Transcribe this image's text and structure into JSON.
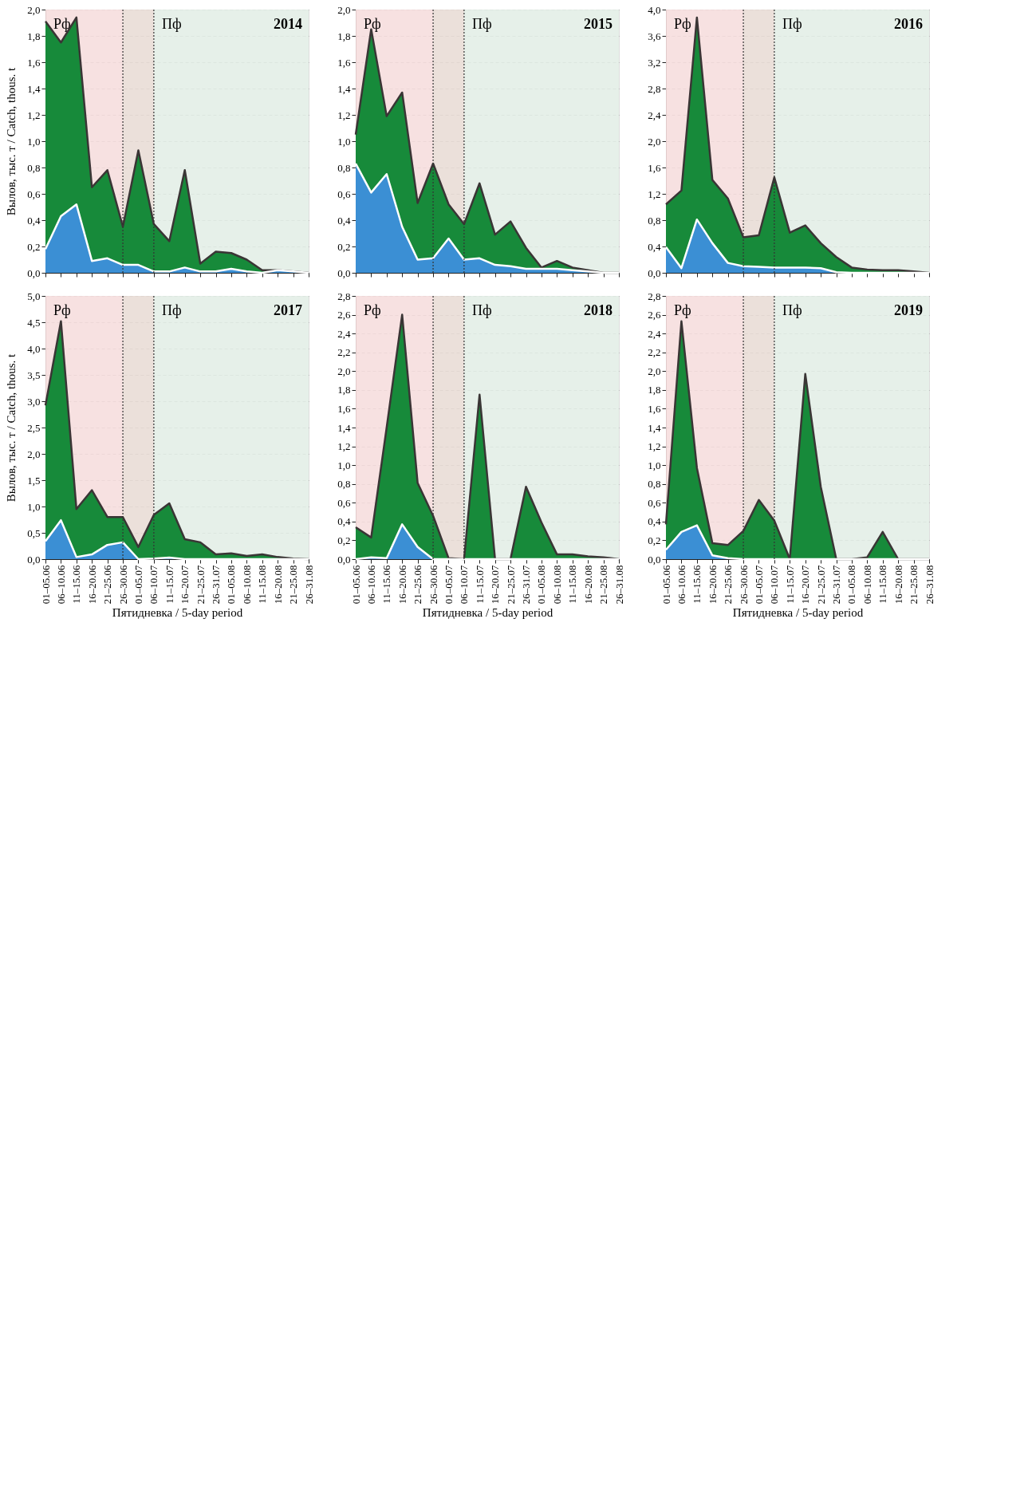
{
  "chart_data": [
    {
      "type": "area",
      "title": "2014",
      "ylabel": "Вылов, тыс. т / Catch, thous. t",
      "tick_labels": "y",
      "grid": "y",
      "categories": [
        "01–05.06",
        "06–10.06",
        "11–15.06",
        "16–20.06",
        "21–25.06",
        "26–30.06",
        "01–05.07",
        "06–10.07",
        "11–15.07",
        "16–20.07",
        "21–25.07",
        "26–31.07",
        "01–05.08",
        "06–10.08",
        "11–15.08",
        "16–20.08",
        "21–25.08",
        "26–31.08"
      ],
      "series": [
        {
          "color": "#178a3a",
          "values": [
            1.91,
            1.75,
            1.94,
            0.65,
            0.78,
            0.35,
            0.93,
            0.37,
            0.24,
            0.78,
            0.07,
            0.16,
            0.15,
            0.1,
            0.02,
            0.02,
            0.01,
            0
          ]
        },
        {
          "color": "#3b8fd4",
          "values": [
            0.18,
            0.43,
            0.52,
            0.09,
            0.11,
            0.06,
            0.06,
            0.01,
            0.01,
            0.04,
            0.01,
            0.01,
            0.03,
            0.01,
            0,
            0.02,
            0.01,
            0
          ]
        }
      ],
      "ylim": [
        0,
        2.0
      ],
      "yticks": [
        {
          "value": 0,
          "label": "0,0"
        },
        {
          "value": 0.2,
          "label": "0,2"
        },
        {
          "value": 0.4,
          "label": "0,4"
        },
        {
          "value": 0.6,
          "label": "0,6"
        },
        {
          "value": 0.8,
          "label": "0,8"
        },
        {
          "value": 1.0,
          "label": "1,0"
        },
        {
          "value": 1.2,
          "label": "1,2"
        },
        {
          "value": 1.4,
          "label": "1,4"
        },
        {
          "value": 1.6,
          "label": "1,6"
        },
        {
          "value": 1.8,
          "label": "1,8"
        },
        {
          "value": 2.0,
          "label": "2,0"
        }
      ],
      "bands": [
        {
          "axis": "x",
          "from": "01–05.06",
          "to": "26–30.06",
          "label": "Рф",
          "color": "#f6dede"
        },
        {
          "axis": "x",
          "from": "26–30.06",
          "to": "06–10.07",
          "label": null,
          "color": "#e9ddd6"
        },
        {
          "axis": "x",
          "from": "06–10.07",
          "to": "26–31.08",
          "label": "Пф",
          "color": "#e3eee7"
        }
      ],
      "ref_lines": [
        {
          "axis": "x",
          "value": "26–30.06",
          "label": null,
          "line_style": "dotted"
        },
        {
          "axis": "x",
          "value": "06–10.07",
          "label": null,
          "line_style": "dotted"
        }
      ]
    },
    {
      "type": "area",
      "title": "2015",
      "tick_labels": "y",
      "grid": "y",
      "categories": [
        "01–05.06",
        "06–10.06",
        "11–15.06",
        "16–20.06",
        "21–25.06",
        "26–30.06",
        "01–05.07",
        "06–10.07",
        "11–15.07",
        "16–20.07",
        "21–25.07",
        "26–31.07",
        "01–05.08",
        "06–10.08",
        "11–15.08",
        "16–20.08",
        "21–25.08",
        "26–31.08"
      ],
      "series": [
        {
          "color": "#178a3a",
          "values": [
            1.05,
            1.85,
            1.19,
            1.37,
            0.53,
            0.83,
            0.52,
            0.37,
            0.68,
            0.29,
            0.39,
            0.19,
            0.04,
            0.09,
            0.04,
            0.02,
            0,
            0
          ]
        },
        {
          "color": "#3b8fd4",
          "values": [
            0.83,
            0.61,
            0.75,
            0.35,
            0.1,
            0.11,
            0.26,
            0.1,
            0.11,
            0.06,
            0.05,
            0.03,
            0.03,
            0.03,
            0.02,
            0.01,
            0,
            0
          ]
        }
      ],
      "ylim": [
        0,
        2.0
      ],
      "yticks": [
        {
          "value": 0,
          "label": "0,0"
        },
        {
          "value": 0.2,
          "label": "0,2"
        },
        {
          "value": 0.4,
          "label": "0,4"
        },
        {
          "value": 0.6,
          "label": "0,6"
        },
        {
          "value": 0.8,
          "label": "0,8"
        },
        {
          "value": 1.0,
          "label": "1,0"
        },
        {
          "value": 1.2,
          "label": "1,2"
        },
        {
          "value": 1.4,
          "label": "1,4"
        },
        {
          "value": 1.6,
          "label": "1,6"
        },
        {
          "value": 1.8,
          "label": "1,8"
        },
        {
          "value": 2.0,
          "label": "2,0"
        }
      ],
      "bands": [
        {
          "axis": "x",
          "from": "01–05.06",
          "to": "26–30.06",
          "label": "Рф",
          "color": "#f6dede"
        },
        {
          "axis": "x",
          "from": "26–30.06",
          "to": "06–10.07",
          "label": null,
          "color": "#e9ddd6"
        },
        {
          "axis": "x",
          "from": "06–10.07",
          "to": "26–31.08",
          "label": "Пф",
          "color": "#e3eee7"
        }
      ],
      "ref_lines": [
        {
          "axis": "x",
          "value": "26–30.06",
          "label": null,
          "line_style": "dotted"
        },
        {
          "axis": "x",
          "value": "06–10.07",
          "label": null,
          "line_style": "dotted"
        }
      ]
    },
    {
      "type": "area",
      "title": "2016",
      "tick_labels": "y",
      "grid": "y",
      "categories": [
        "01–05.06",
        "06–10.06",
        "11–15.06",
        "16–20.06",
        "21–25.06",
        "26–30.06",
        "01–05.07",
        "06–10.07",
        "11–15.07",
        "16–20.07",
        "21–25.07",
        "26–31.07",
        "01–05.08",
        "06–10.08",
        "11–15.08",
        "16–20.08",
        "21–25.08",
        "26–31.08"
      ],
      "series": [
        {
          "color": "#178a3a",
          "values": [
            1.04,
            1.25,
            3.88,
            1.41,
            1.13,
            0.54,
            0.57,
            1.45,
            0.61,
            0.72,
            0.45,
            0.24,
            0.08,
            0.05,
            0.04,
            0.04,
            0.02,
            0
          ]
        },
        {
          "color": "#3b8fd4",
          "values": [
            0.39,
            0.07,
            0.81,
            0.45,
            0.15,
            0.1,
            0.09,
            0.08,
            0.08,
            0.08,
            0.07,
            0.01,
            0,
            0,
            0,
            0,
            0,
            0
          ]
        }
      ],
      "ylim": [
        0,
        4.0
      ],
      "yticks": [
        {
          "value": 0,
          "label": "0,0"
        },
        {
          "value": 0.4,
          "label": "0,4"
        },
        {
          "value": 0.8,
          "label": "0,8"
        },
        {
          "value": 1.2,
          "label": "1,2"
        },
        {
          "value": 1.6,
          "label": "1,6"
        },
        {
          "value": 2.0,
          "label": "2,0"
        },
        {
          "value": 2.4,
          "label": "2,4"
        },
        {
          "value": 2.8,
          "label": "2,8"
        },
        {
          "value": 3.2,
          "label": "3,2"
        },
        {
          "value": 3.6,
          "label": "3,6"
        },
        {
          "value": 4.0,
          "label": "4,0"
        }
      ],
      "bands": [
        {
          "axis": "x",
          "from": "01–05.06",
          "to": "26–30.06",
          "label": "Рф",
          "color": "#f6dede"
        },
        {
          "axis": "x",
          "from": "26–30.06",
          "to": "06–10.07",
          "label": null,
          "color": "#e9ddd6"
        },
        {
          "axis": "x",
          "from": "06–10.07",
          "to": "26–31.08",
          "label": "Пф",
          "color": "#e3eee7"
        }
      ],
      "ref_lines": [
        {
          "axis": "x",
          "value": "26–30.06",
          "label": null,
          "line_style": "dotted"
        },
        {
          "axis": "x",
          "value": "06–10.07",
          "label": null,
          "line_style": "dotted"
        }
      ]
    },
    {
      "type": "area",
      "title": "2017",
      "ylabel": "Вылов, тыс. т / Catch, thous. t",
      "xlabel": "Пятидневка / 5-day period",
      "grid": "y",
      "categories": [
        "01–05.06",
        "06–10.06",
        "11–15.06",
        "16–20.06",
        "21–25.06",
        "26–30.06",
        "01–05.07",
        "06–10.07",
        "11–15.07",
        "16–20.07",
        "21–25.07",
        "26–31.07",
        "01–05.08",
        "06–10.08",
        "11–15.08",
        "16–20.08",
        "21–25.08",
        "26–31.08"
      ],
      "series": [
        {
          "color": "#178a3a",
          "values": [
            2.92,
            4.52,
            0.95,
            1.31,
            0.8,
            0.8,
            0.23,
            0.84,
            1.06,
            0.38,
            0.32,
            0.09,
            0.11,
            0.06,
            0.09,
            0.04,
            0.01,
            0
          ]
        },
        {
          "color": "#3b8fd4",
          "values": [
            0.34,
            0.74,
            0.04,
            0.09,
            0.27,
            0.32,
            0,
            0.01,
            0.03,
            0,
            0,
            0,
            0,
            0,
            0,
            0,
            0,
            0
          ]
        }
      ],
      "ylim": [
        0,
        5.0
      ],
      "yticks": [
        {
          "value": 0,
          "label": "0,0"
        },
        {
          "value": 0.5,
          "label": "0,5"
        },
        {
          "value": 1.0,
          "label": "1,0"
        },
        {
          "value": 1.5,
          "label": "1,5"
        },
        {
          "value": 2.0,
          "label": "2,0"
        },
        {
          "value": 2.5,
          "label": "2,5"
        },
        {
          "value": 3.0,
          "label": "3,0"
        },
        {
          "value": 3.5,
          "label": "3,5"
        },
        {
          "value": 4.0,
          "label": "4,0"
        },
        {
          "value": 4.5,
          "label": "4,5"
        },
        {
          "value": 5.0,
          "label": "5,0"
        }
      ],
      "bands": [
        {
          "axis": "x",
          "from": "01–05.06",
          "to": "26–30.06",
          "label": "Рф",
          "color": "#f6dede"
        },
        {
          "axis": "x",
          "from": "26–30.06",
          "to": "06–10.07",
          "label": null,
          "color": "#e9ddd6"
        },
        {
          "axis": "x",
          "from": "06–10.07",
          "to": "26–31.08",
          "label": "Пф",
          "color": "#e3eee7"
        }
      ],
      "ref_lines": [
        {
          "axis": "x",
          "value": "26–30.06",
          "label": null,
          "line_style": "dotted"
        },
        {
          "axis": "x",
          "value": "06–10.07",
          "label": null,
          "line_style": "dotted"
        }
      ]
    },
    {
      "type": "area",
      "title": "2018",
      "xlabel": "Пятидневка / 5-day period",
      "grid": "y",
      "categories": [
        "01–05.06",
        "06–10.06",
        "11–15.06",
        "16–20.06",
        "21–25.06",
        "26–30.06",
        "01–05.07",
        "06–10.07",
        "11–15.07",
        "16–20.07",
        "21–25.07",
        "26–31.07",
        "01–05.08",
        "06–10.08",
        "11–15.08",
        "16–20.08",
        "21–25.08",
        "26–31.08"
      ],
      "series": [
        {
          "color": "#178a3a",
          "values": [
            0.34,
            0.23,
            1.4,
            2.6,
            0.81,
            0.46,
            0.01,
            0,
            1.75,
            0,
            0,
            0.77,
            0.39,
            0.05,
            0.05,
            0.03,
            0.02,
            0
          ]
        },
        {
          "color": "#3b8fd4",
          "values": [
            0,
            0.02,
            0.01,
            0.37,
            0.13,
            0,
            0,
            0,
            0,
            0,
            0,
            0,
            0,
            0,
            0,
            0,
            0,
            0
          ]
        }
      ],
      "ylim": [
        0,
        2.8
      ],
      "yticks": [
        {
          "value": 0,
          "label": "0,0"
        },
        {
          "value": 0.2,
          "label": "0,2"
        },
        {
          "value": 0.4,
          "label": "0,4"
        },
        {
          "value": 0.6,
          "label": "0,6"
        },
        {
          "value": 0.8,
          "label": "0,8"
        },
        {
          "value": 1.0,
          "label": "1,0"
        },
        {
          "value": 1.2,
          "label": "1,2"
        },
        {
          "value": 1.4,
          "label": "1,4"
        },
        {
          "value": 1.6,
          "label": "1,6"
        },
        {
          "value": 1.8,
          "label": "1,8"
        },
        {
          "value": 2.0,
          "label": "2,0"
        },
        {
          "value": 2.2,
          "label": "2,2"
        },
        {
          "value": 2.4,
          "label": "2,4"
        },
        {
          "value": 2.6,
          "label": "2,6"
        },
        {
          "value": 2.8,
          "label": "2,8"
        }
      ],
      "bands": [
        {
          "axis": "x",
          "from": "01–05.06",
          "to": "26–30.06",
          "label": "Рф",
          "color": "#f6dede"
        },
        {
          "axis": "x",
          "from": "26–30.06",
          "to": "06–10.07",
          "label": null,
          "color": "#e9ddd6"
        },
        {
          "axis": "x",
          "from": "06–10.07",
          "to": "26–31.08",
          "label": "Пф",
          "color": "#e3eee7"
        }
      ],
      "ref_lines": [
        {
          "axis": "x",
          "value": "26–30.06",
          "label": null,
          "line_style": "dotted"
        },
        {
          "axis": "x",
          "value": "06–10.07",
          "label": null,
          "line_style": "dotted"
        }
      ]
    },
    {
      "type": "area",
      "title": "2019",
      "xlabel": "Пятидневка / 5-day period",
      "grid": "y",
      "categories": [
        "01–05.06",
        "06–10.06",
        "11–15.06",
        "16–20.06",
        "21–25.06",
        "26–30.06",
        "01–05.07",
        "06–10.07",
        "11–15.07",
        "16–20.07",
        "21–25.07",
        "26–31.07",
        "01–05.08",
        "06–10.08",
        "11–15.08",
        "16–20.08",
        "21–25.08",
        "26–31.08"
      ],
      "series": [
        {
          "color": "#178a3a",
          "values": [
            0.37,
            2.53,
            0.97,
            0.17,
            0.15,
            0.3,
            0.63,
            0.41,
            0,
            1.97,
            0.77,
            0,
            0,
            0.02,
            0.29,
            0,
            0,
            0
          ]
        },
        {
          "color": "#3b8fd4",
          "values": [
            0.1,
            0.29,
            0.36,
            0.04,
            0.01,
            0,
            0,
            0,
            0,
            0,
            0,
            0,
            0,
            0,
            0,
            0,
            0,
            0
          ]
        }
      ],
      "ylim": [
        0,
        2.8
      ],
      "yticks": [
        {
          "value": 0,
          "label": "0,0"
        },
        {
          "value": 0.2,
          "label": "0,2"
        },
        {
          "value": 0.4,
          "label": "0,4"
        },
        {
          "value": 0.6,
          "label": "0,6"
        },
        {
          "value": 0.8,
          "label": "0,8"
        },
        {
          "value": 1.0,
          "label": "1,0"
        },
        {
          "value": 1.2,
          "label": "1,2"
        },
        {
          "value": 1.4,
          "label": "1,4"
        },
        {
          "value": 1.6,
          "label": "1,6"
        },
        {
          "value": 1.8,
          "label": "1,8"
        },
        {
          "value": 2.0,
          "label": "2,0"
        },
        {
          "value": 2.2,
          "label": "2,2"
        },
        {
          "value": 2.4,
          "label": "2,4"
        },
        {
          "value": 2.6,
          "label": "2,6"
        },
        {
          "value": 2.8,
          "label": "2,8"
        }
      ],
      "bands": [
        {
          "axis": "x",
          "from": "01–05.06",
          "to": "26–30.06",
          "label": "Рф",
          "color": "#f6dede"
        },
        {
          "axis": "x",
          "from": "26–30.06",
          "to": "06–10.07",
          "label": null,
          "color": "#e9ddd6"
        },
        {
          "axis": "x",
          "from": "06–10.07",
          "to": "26–31.08",
          "label": "Пф",
          "color": "#e3eee7"
        }
      ],
      "ref_lines": [
        {
          "axis": "x",
          "value": "26–30.06",
          "label": null,
          "line_style": "dotted"
        },
        {
          "axis": "x",
          "value": "06–10.07",
          "label": null,
          "line_style": "dotted"
        }
      ]
    }
  ]
}
